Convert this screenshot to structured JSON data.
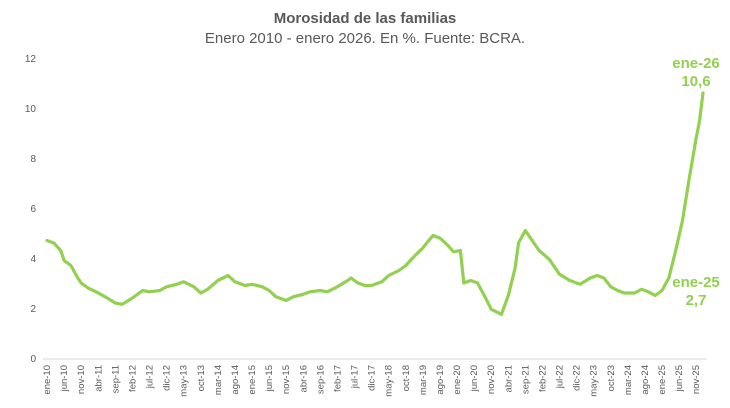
{
  "chart_data": {
    "type": "line",
    "title": "Morosidad de las familias",
    "subtitle": "Enero 2010 - enero 2026. En %. Fuente: BCRA.",
    "xlabel": "",
    "ylabel": "",
    "ylim": [
      0,
      12
    ],
    "yticks": [
      "0",
      "2",
      "4",
      "6",
      "8",
      "10",
      "12"
    ],
    "grid": false,
    "line_color": "#92D050",
    "xtick_labels": [
      "ene-10",
      "jun-10",
      "nov-10",
      "abr-11",
      "sep-11",
      "feb-12",
      "jul-12",
      "dic-12",
      "may-13",
      "oct-13",
      "mar-14",
      "ago-14",
      "ene-15",
      "jun-15",
      "nov-15",
      "abr-16",
      "sep-16",
      "feb-17",
      "jul-17",
      "dic-17",
      "may-18",
      "oct-18",
      "mar-19",
      "ago-19",
      "ene-20",
      "jun-20",
      "nov-20",
      "abr-21",
      "sep-21",
      "feb-22",
      "jul-22",
      "dic-22",
      "may-23",
      "oct-23",
      "mar-24",
      "ago-24",
      "ene-25",
      "jun-25",
      "nov-25"
    ],
    "series": [
      {
        "points": [
          [
            "ene-10",
            4.7
          ],
          [
            "mar-10",
            4.6
          ],
          [
            "may-10",
            4.3
          ],
          [
            "jun-10",
            3.9
          ],
          [
            "ago-10",
            3.7
          ],
          [
            "oct-10",
            3.2
          ],
          [
            "nov-10",
            3.0
          ],
          [
            "ene-11",
            2.8
          ],
          [
            "abr-11",
            2.6
          ],
          [
            "jun-11",
            2.45
          ],
          [
            "sep-11",
            2.2
          ],
          [
            "nov-11",
            2.15
          ],
          [
            "feb-12",
            2.4
          ],
          [
            "may-12",
            2.7
          ],
          [
            "jul-12",
            2.65
          ],
          [
            "oct-12",
            2.7
          ],
          [
            "dic-12",
            2.85
          ],
          [
            "mar-13",
            2.95
          ],
          [
            "may-13",
            3.05
          ],
          [
            "ago-13",
            2.85
          ],
          [
            "oct-13",
            2.6
          ],
          [
            "dic-13",
            2.75
          ],
          [
            "mar-14",
            3.1
          ],
          [
            "jun-14",
            3.3
          ],
          [
            "ago-14",
            3.05
          ],
          [
            "nov-14",
            2.9
          ],
          [
            "ene-15",
            2.95
          ],
          [
            "abr-15",
            2.85
          ],
          [
            "jun-15",
            2.7
          ],
          [
            "ago-15",
            2.45
          ],
          [
            "nov-15",
            2.3
          ],
          [
            "ene-16",
            2.45
          ],
          [
            "abr-16",
            2.55
          ],
          [
            "jun-16",
            2.65
          ],
          [
            "sep-16",
            2.7
          ],
          [
            "nov-16",
            2.65
          ],
          [
            "feb-17",
            2.85
          ],
          [
            "may-17",
            3.1
          ],
          [
            "jun-17",
            3.2
          ],
          [
            "ago-17",
            3.0
          ],
          [
            "oct-17",
            2.9
          ],
          [
            "dic-17",
            2.9
          ],
          [
            "mar-18",
            3.05
          ],
          [
            "may-18",
            3.3
          ],
          [
            "ago-18",
            3.5
          ],
          [
            "oct-18",
            3.7
          ],
          [
            "dic-18",
            4.0
          ],
          [
            "mar-19",
            4.4
          ],
          [
            "may-19",
            4.75
          ],
          [
            "jun-19",
            4.9
          ],
          [
            "ago-19",
            4.8
          ],
          [
            "oct-19",
            4.55
          ],
          [
            "dic-19",
            4.25
          ],
          [
            "feb-20",
            4.3
          ],
          [
            "mar-20",
            3.0
          ],
          [
            "may-20",
            3.1
          ],
          [
            "jul-20",
            3.0
          ],
          [
            "sep-20",
            2.5
          ],
          [
            "nov-20",
            1.95
          ],
          [
            "feb-21",
            1.75
          ],
          [
            "abr-21",
            2.5
          ],
          [
            "jun-21",
            3.6
          ],
          [
            "jul-21",
            4.6
          ],
          [
            "sep-21",
            5.1
          ],
          [
            "nov-21",
            4.7
          ],
          [
            "ene-22",
            4.3
          ],
          [
            "abr-22",
            3.95
          ],
          [
            "jul-22",
            3.35
          ],
          [
            "oct-22",
            3.1
          ],
          [
            "ene-23",
            2.95
          ],
          [
            "abr-23",
            3.2
          ],
          [
            "jun-23",
            3.3
          ],
          [
            "ago-23",
            3.2
          ],
          [
            "oct-23",
            2.85
          ],
          [
            "dic-23",
            2.7
          ],
          [
            "feb-24",
            2.6
          ],
          [
            "may-24",
            2.6
          ],
          [
            "jul-24",
            2.75
          ],
          [
            "sep-24",
            2.65
          ],
          [
            "nov-24",
            2.5
          ],
          [
            "ene-25",
            2.7
          ],
          [
            "mar-25",
            3.2
          ],
          [
            "may-25",
            4.3
          ],
          [
            "jul-25",
            5.5
          ],
          [
            "sep-25",
            7.2
          ],
          [
            "nov-25",
            8.8
          ],
          [
            "dic-25",
            9.5
          ],
          [
            "ene-26",
            10.6
          ]
        ]
      }
    ],
    "annotations": [
      {
        "label": "ene-26",
        "value": "10,6"
      },
      {
        "label": "ene-25",
        "value": "2,7"
      }
    ]
  }
}
